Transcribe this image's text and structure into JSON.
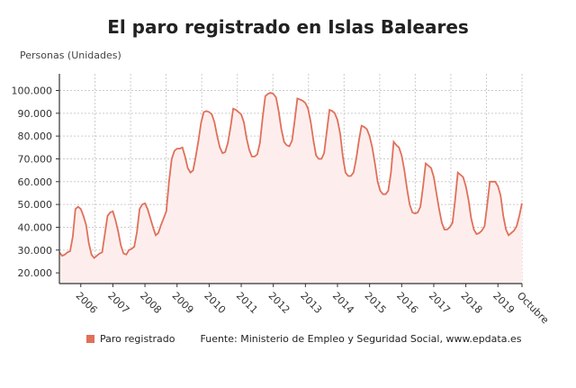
{
  "title": "El paro registrado en Islas Baleares",
  "colors": {
    "line": "#e0705a",
    "fill": "#fdeeed",
    "grid": "#cccccc"
  },
  "legend": {
    "series_label": "Paro registrado",
    "source": "Fuente: Ministerio de Empleo y Seguridad Social, www.epdata.es"
  },
  "chart_data": {
    "type": "area",
    "title": "El paro registrado en Islas Baleares",
    "ylabel": "Personas (Unidades)",
    "xlabel": "",
    "ylim": [
      15300,
      107300
    ],
    "grid": true,
    "legend_position": "bottom-left",
    "y_ticks": [
      "20.000",
      "30.000",
      "40.000",
      "50.000",
      "60.000",
      "70.000",
      "80.000",
      "90.000",
      "100.000"
    ],
    "y_tick_values": [
      20000,
      30000,
      40000,
      50000,
      60000,
      70000,
      80000,
      90000,
      100000
    ],
    "x_ticks": [
      "2006",
      "2007",
      "2008",
      "2009",
      "2010",
      "2011",
      "2012",
      "2013",
      "2014",
      "2015",
      "2016",
      "2017",
      "2018",
      "2019",
      "Octubre"
    ],
    "x_start": "2005-05",
    "x_end": "2019-10",
    "series": [
      {
        "name": "Paro registrado",
        "values": [
          29000,
          27500,
          28000,
          29000,
          29500,
          36000,
          48000,
          49000,
          48000,
          45000,
          41000,
          33000,
          28000,
          26500,
          27500,
          28500,
          29000,
          37000,
          45000,
          46500,
          47000,
          43000,
          38000,
          32000,
          28500,
          28000,
          30000,
          30500,
          31500,
          38000,
          48000,
          50000,
          50500,
          48000,
          44000,
          40000,
          36500,
          37500,
          41000,
          44000,
          47000,
          60000,
          70000,
          73500,
          74500,
          74500,
          75000,
          71000,
          66000,
          64000,
          65000,
          71000,
          78000,
          86000,
          90500,
          91000,
          90500,
          89500,
          86000,
          80000,
          75000,
          72500,
          73000,
          77000,
          84000,
          92000,
          91500,
          90500,
          89500,
          86000,
          79000,
          74000,
          71000,
          71000,
          72000,
          77000,
          88000,
          97500,
          98500,
          99000,
          98500,
          97000,
          91000,
          83000,
          77500,
          76000,
          75500,
          78000,
          87000,
          96500,
          96000,
          95500,
          94500,
          92000,
          86000,
          78000,
          71500,
          70000,
          70000,
          72500,
          82000,
          91500,
          91000,
          90000,
          87000,
          81000,
          71000,
          64000,
          62500,
          62500,
          64000,
          70000,
          78000,
          84500,
          84000,
          83000,
          80000,
          75000,
          68000,
          60000,
          56000,
          54500,
          54500,
          56000,
          64000,
          77500,
          76000,
          75000,
          71500,
          65000,
          57000,
          50000,
          46500,
          46000,
          46500,
          49000,
          58000,
          68000,
          67000,
          66000,
          62000,
          55000,
          48000,
          42000,
          39000,
          39000,
          40000,
          42000,
          52000,
          64000,
          63000,
          62000,
          58000,
          52000,
          44000,
          39000,
          37000,
          37500,
          38500,
          40500,
          50000,
          60000,
          60000,
          60000,
          58000,
          54000,
          45000,
          39000,
          36500,
          37500,
          38500,
          40500,
          45000,
          50500
        ]
      }
    ]
  }
}
